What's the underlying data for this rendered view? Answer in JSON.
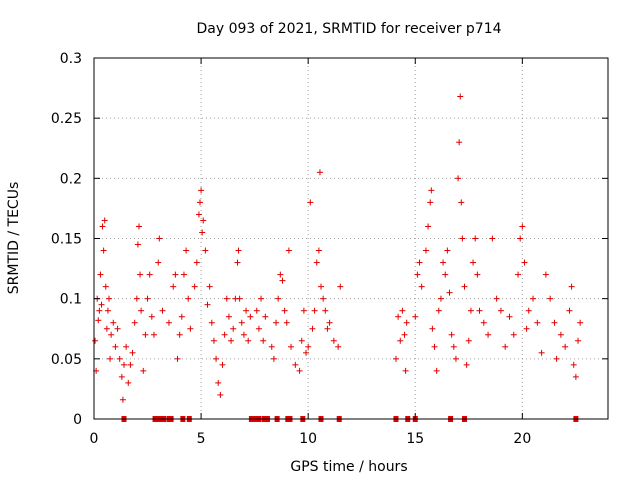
{
  "chart_data": {
    "type": "scatter",
    "title": "Day 093 of 2021, SRMTID for receiver p714",
    "xlabel": "GPS time / hours",
    "ylabel": "SRMTID / TECUs",
    "xlim": [
      0,
      24
    ],
    "ylim": [
      0,
      0.3
    ],
    "xticks": [
      0,
      5,
      10,
      15,
      20
    ],
    "xtick_labels": [
      "0",
      "5",
      "10",
      "15",
      "20"
    ],
    "yticks": [
      0,
      0.05,
      0.1,
      0.15,
      0.2,
      0.25,
      0.3
    ],
    "ytick_labels": [
      "0",
      "0.05",
      "0.1",
      "0.15",
      "0.2",
      "0.25",
      "0.3"
    ],
    "grid": true,
    "marker": "+",
    "color": "#e00000",
    "series": [
      {
        "name": "SRMTID",
        "points": [
          [
            0.05,
            0.065
          ],
          [
            0.1,
            0.04
          ],
          [
            0.15,
            0.1
          ],
          [
            0.2,
            0.082
          ],
          [
            0.25,
            0.09
          ],
          [
            0.3,
            0.12
          ],
          [
            0.35,
            0.095
          ],
          [
            0.4,
            0.16
          ],
          [
            0.45,
            0.14
          ],
          [
            0.5,
            0.165
          ],
          [
            0.55,
            0.11
          ],
          [
            0.6,
            0.075
          ],
          [
            0.65,
            0.09
          ],
          [
            0.7,
            0.1
          ],
          [
            0.75,
            0.05
          ],
          [
            0.8,
            0.07
          ],
          [
            0.9,
            0.08
          ],
          [
            1.0,
            0.06
          ],
          [
            1.1,
            0.075
          ],
          [
            1.2,
            0.05
          ],
          [
            1.3,
            0.035
          ],
          [
            1.35,
            0.016
          ],
          [
            1.4,
            0.045
          ],
          [
            1.5,
            0.06
          ],
          [
            1.6,
            0.03
          ],
          [
            1.7,
            0.045
          ],
          [
            1.8,
            0.055
          ],
          [
            1.9,
            0.08
          ],
          [
            2.0,
            0.1
          ],
          [
            2.05,
            0.145
          ],
          [
            2.1,
            0.16
          ],
          [
            2.15,
            0.12
          ],
          [
            2.2,
            0.09
          ],
          [
            2.3,
            0.04
          ],
          [
            2.4,
            0.07
          ],
          [
            2.5,
            0.1
          ],
          [
            2.6,
            0.12
          ],
          [
            2.7,
            0.085
          ],
          [
            2.8,
            0.07
          ],
          [
            3.0,
            0.13
          ],
          [
            3.05,
            0.15
          ],
          [
            3.2,
            0.09
          ],
          [
            3.5,
            0.08
          ],
          [
            3.7,
            0.11
          ],
          [
            3.8,
            0.12
          ],
          [
            3.9,
            0.05
          ],
          [
            4.0,
            0.07
          ],
          [
            4.1,
            0.085
          ],
          [
            4.2,
            0.12
          ],
          [
            4.3,
            0.14
          ],
          [
            4.4,
            0.1
          ],
          [
            4.5,
            0.075
          ],
          [
            4.7,
            0.11
          ],
          [
            4.8,
            0.13
          ],
          [
            4.9,
            0.17
          ],
          [
            4.95,
            0.18
          ],
          [
            5.0,
            0.19
          ],
          [
            5.05,
            0.155
          ],
          [
            5.1,
            0.165
          ],
          [
            5.2,
            0.14
          ],
          [
            5.3,
            0.095
          ],
          [
            5.4,
            0.11
          ],
          [
            5.5,
            0.08
          ],
          [
            5.6,
            0.065
          ],
          [
            5.7,
            0.05
          ],
          [
            5.8,
            0.03
          ],
          [
            5.9,
            0.02
          ],
          [
            6.0,
            0.045
          ],
          [
            6.1,
            0.07
          ],
          [
            6.2,
            0.1
          ],
          [
            6.3,
            0.085
          ],
          [
            6.4,
            0.065
          ],
          [
            6.5,
            0.075
          ],
          [
            6.6,
            0.1
          ],
          [
            6.7,
            0.13
          ],
          [
            6.75,
            0.14
          ],
          [
            6.8,
            0.1
          ],
          [
            6.9,
            0.08
          ],
          [
            7.0,
            0.07
          ],
          [
            7.1,
            0.09
          ],
          [
            7.2,
            0.065
          ],
          [
            7.3,
            0.085
          ],
          [
            7.6,
            0.09
          ],
          [
            7.7,
            0.075
          ],
          [
            7.8,
            0.1
          ],
          [
            7.9,
            0.065
          ],
          [
            8.0,
            0.085
          ],
          [
            8.3,
            0.06
          ],
          [
            8.4,
            0.05
          ],
          [
            8.5,
            0.08
          ],
          [
            8.6,
            0.1
          ],
          [
            8.7,
            0.12
          ],
          [
            8.8,
            0.115
          ],
          [
            8.9,
            0.09
          ],
          [
            9.0,
            0.08
          ],
          [
            9.1,
            0.14
          ],
          [
            9.2,
            0.06
          ],
          [
            9.4,
            0.045
          ],
          [
            9.6,
            0.04
          ],
          [
            9.7,
            0.065
          ],
          [
            9.8,
            0.09
          ],
          [
            9.9,
            0.055
          ],
          [
            10.0,
            0.06
          ],
          [
            10.1,
            0.18
          ],
          [
            10.2,
            0.075
          ],
          [
            10.3,
            0.09
          ],
          [
            10.4,
            0.13
          ],
          [
            10.5,
            0.14
          ],
          [
            10.55,
            0.205
          ],
          [
            10.6,
            0.11
          ],
          [
            10.7,
            0.1
          ],
          [
            10.8,
            0.09
          ],
          [
            10.9,
            0.075
          ],
          [
            11.0,
            0.08
          ],
          [
            11.2,
            0.065
          ],
          [
            11.4,
            0.06
          ],
          [
            11.5,
            0.11
          ],
          [
            14.1,
            0.05
          ],
          [
            14.2,
            0.085
          ],
          [
            14.3,
            0.065
          ],
          [
            14.4,
            0.09
          ],
          [
            14.5,
            0.07
          ],
          [
            14.55,
            0.04
          ],
          [
            14.6,
            0.08
          ],
          [
            15.0,
            0.085
          ],
          [
            15.1,
            0.12
          ],
          [
            15.2,
            0.13
          ],
          [
            15.3,
            0.11
          ],
          [
            15.5,
            0.14
          ],
          [
            15.6,
            0.16
          ],
          [
            15.7,
            0.18
          ],
          [
            15.75,
            0.19
          ],
          [
            15.8,
            0.075
          ],
          [
            15.9,
            0.06
          ],
          [
            16.0,
            0.04
          ],
          [
            16.1,
            0.09
          ],
          [
            16.2,
            0.1
          ],
          [
            16.3,
            0.13
          ],
          [
            16.4,
            0.12
          ],
          [
            16.5,
            0.14
          ],
          [
            16.6,
            0.105
          ],
          [
            16.7,
            0.07
          ],
          [
            16.8,
            0.06
          ],
          [
            16.9,
            0.05
          ],
          [
            17.0,
            0.2
          ],
          [
            17.05,
            0.23
          ],
          [
            17.1,
            0.268
          ],
          [
            17.15,
            0.18
          ],
          [
            17.2,
            0.15
          ],
          [
            17.3,
            0.11
          ],
          [
            17.4,
            0.045
          ],
          [
            17.5,
            0.065
          ],
          [
            17.6,
            0.09
          ],
          [
            17.7,
            0.13
          ],
          [
            17.8,
            0.15
          ],
          [
            17.9,
            0.12
          ],
          [
            18.0,
            0.09
          ],
          [
            18.2,
            0.08
          ],
          [
            18.4,
            0.07
          ],
          [
            18.6,
            0.15
          ],
          [
            18.8,
            0.1
          ],
          [
            19.0,
            0.09
          ],
          [
            19.2,
            0.06
          ],
          [
            19.4,
            0.085
          ],
          [
            19.6,
            0.07
          ],
          [
            19.8,
            0.12
          ],
          [
            19.9,
            0.15
          ],
          [
            20.0,
            0.16
          ],
          [
            20.1,
            0.13
          ],
          [
            20.2,
            0.075
          ],
          [
            20.3,
            0.09
          ],
          [
            20.5,
            0.1
          ],
          [
            20.7,
            0.08
          ],
          [
            20.9,
            0.055
          ],
          [
            21.1,
            0.12
          ],
          [
            21.3,
            0.1
          ],
          [
            21.5,
            0.08
          ],
          [
            21.6,
            0.05
          ],
          [
            21.8,
            0.07
          ],
          [
            22.0,
            0.06
          ],
          [
            22.2,
            0.09
          ],
          [
            22.3,
            0.11
          ],
          [
            22.4,
            0.045
          ],
          [
            22.5,
            0.035
          ],
          [
            22.6,
            0.065
          ],
          [
            22.7,
            0.08
          ]
        ]
      },
      {
        "name": "zero markers",
        "points": [
          [
            1.4,
            0
          ],
          [
            2.85,
            0
          ],
          [
            3.05,
            0
          ],
          [
            3.25,
            0
          ],
          [
            3.5,
            0
          ],
          [
            3.6,
            0
          ],
          [
            4.15,
            0
          ],
          [
            4.45,
            0
          ],
          [
            7.35,
            0
          ],
          [
            7.55,
            0
          ],
          [
            7.7,
            0
          ],
          [
            7.95,
            0
          ],
          [
            8.1,
            0
          ],
          [
            8.55,
            0
          ],
          [
            9.05,
            0
          ],
          [
            9.15,
            0
          ],
          [
            9.75,
            0
          ],
          [
            10.6,
            0
          ],
          [
            11.45,
            0
          ],
          [
            14.1,
            0
          ],
          [
            14.65,
            0
          ],
          [
            15.0,
            0
          ],
          [
            16.65,
            0
          ],
          [
            17.3,
            0
          ],
          [
            22.5,
            0
          ]
        ]
      }
    ]
  }
}
